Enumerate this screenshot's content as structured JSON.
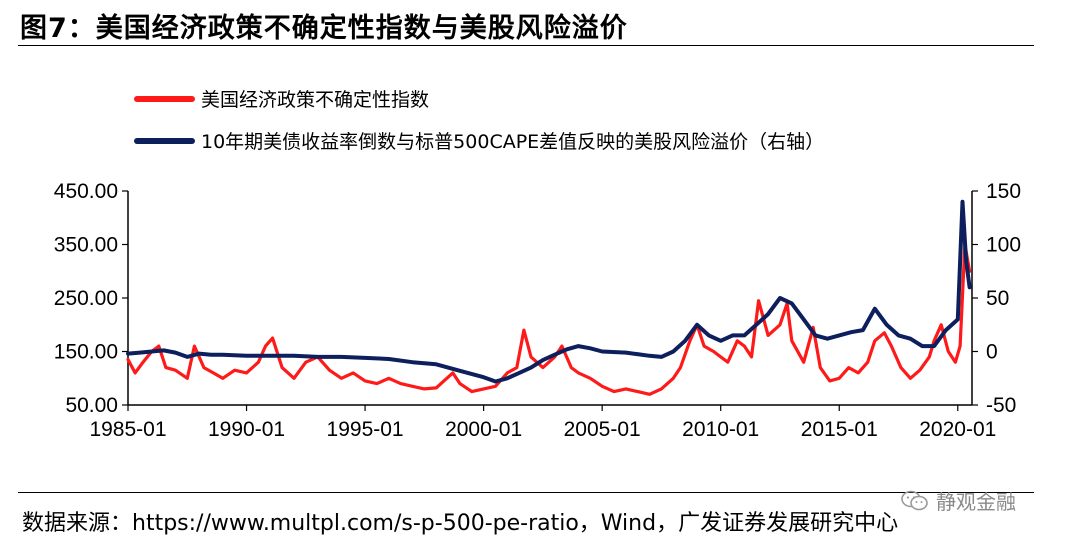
{
  "figure": {
    "title": "图7：美国经济政策不确定性指数与美股风险溢价",
    "source": "数据来源：https://www.multpl.com/s-p-500-pe-ratio，Wind，广发证券发展研究中心",
    "watermark": "静观金融"
  },
  "chart_data": {
    "type": "line",
    "x_range": [
      "1985-01",
      "2020-06"
    ],
    "x_ticks": [
      "1985-01",
      "1990-01",
      "1995-01",
      "2000-01",
      "2005-01",
      "2010-01",
      "2015-01",
      "2020-01"
    ],
    "y_left": {
      "ticks": [
        "450.00",
        "350.00",
        "250.00",
        "150.00",
        "50.00"
      ],
      "range": [
        50,
        450
      ]
    },
    "y_right": {
      "ticks": [
        "150",
        "100",
        "50",
        "0",
        "-50"
      ],
      "range": [
        -50,
        150
      ]
    },
    "legend_position": "top-left",
    "grid": false,
    "colors": {
      "uncertainty": "#ff1a1a",
      "premium": "#0d1f5c"
    },
    "series": [
      {
        "name": "美国经济政策不确定性指数",
        "axis": "left",
        "points": [
          [
            1985.0,
            135
          ],
          [
            1985.3,
            110
          ],
          [
            1985.6,
            128
          ],
          [
            1986.0,
            150
          ],
          [
            1986.3,
            160
          ],
          [
            1986.6,
            120
          ],
          [
            1987.0,
            115
          ],
          [
            1987.5,
            100
          ],
          [
            1987.8,
            160
          ],
          [
            1988.2,
            120
          ],
          [
            1988.6,
            110
          ],
          [
            1989.0,
            100
          ],
          [
            1989.5,
            115
          ],
          [
            1990.0,
            110
          ],
          [
            1990.5,
            130
          ],
          [
            1990.8,
            160
          ],
          [
            1991.1,
            175
          ],
          [
            1991.5,
            120
          ],
          [
            1992.0,
            100
          ],
          [
            1992.5,
            130
          ],
          [
            1993.0,
            140
          ],
          [
            1993.5,
            115
          ],
          [
            1994.0,
            100
          ],
          [
            1994.5,
            110
          ],
          [
            1995.0,
            95
          ],
          [
            1995.5,
            90
          ],
          [
            1996.0,
            100
          ],
          [
            1996.5,
            90
          ],
          [
            1997.0,
            85
          ],
          [
            1997.5,
            80
          ],
          [
            1998.0,
            82
          ],
          [
            1998.7,
            110
          ],
          [
            1999.0,
            90
          ],
          [
            1999.5,
            75
          ],
          [
            2000.0,
            80
          ],
          [
            2000.5,
            85
          ],
          [
            2001.0,
            110
          ],
          [
            2001.4,
            120
          ],
          [
            2001.7,
            190
          ],
          [
            2002.0,
            140
          ],
          [
            2002.5,
            120
          ],
          [
            2003.0,
            140
          ],
          [
            2003.3,
            160
          ],
          [
            2003.7,
            120
          ],
          [
            2004.0,
            110
          ],
          [
            2004.5,
            100
          ],
          [
            2005.0,
            85
          ],
          [
            2005.5,
            75
          ],
          [
            2006.0,
            80
          ],
          [
            2006.5,
            75
          ],
          [
            2007.0,
            70
          ],
          [
            2007.5,
            80
          ],
          [
            2008.0,
            100
          ],
          [
            2008.3,
            120
          ],
          [
            2008.7,
            170
          ],
          [
            2009.0,
            200
          ],
          [
            2009.3,
            160
          ],
          [
            2009.7,
            150
          ],
          [
            2010.0,
            140
          ],
          [
            2010.3,
            130
          ],
          [
            2010.7,
            170
          ],
          [
            2011.0,
            160
          ],
          [
            2011.3,
            140
          ],
          [
            2011.6,
            245
          ],
          [
            2012.0,
            180
          ],
          [
            2012.5,
            200
          ],
          [
            2012.8,
            240
          ],
          [
            2013.0,
            170
          ],
          [
            2013.5,
            130
          ],
          [
            2013.9,
            195
          ],
          [
            2014.2,
            120
          ],
          [
            2014.6,
            95
          ],
          [
            2015.0,
            100
          ],
          [
            2015.4,
            120
          ],
          [
            2015.8,
            110
          ],
          [
            2016.2,
            130
          ],
          [
            2016.5,
            170
          ],
          [
            2016.9,
            185
          ],
          [
            2017.2,
            160
          ],
          [
            2017.6,
            120
          ],
          [
            2018.0,
            100
          ],
          [
            2018.4,
            115
          ],
          [
            2018.8,
            140
          ],
          [
            2019.0,
            170
          ],
          [
            2019.3,
            200
          ],
          [
            2019.6,
            150
          ],
          [
            2019.9,
            130
          ],
          [
            2020.1,
            160
          ],
          [
            2020.3,
            350
          ],
          [
            2020.5,
            300
          ]
        ]
      },
      {
        "name": "10年期美债收益率倒数与标普500CAPE差值反映的美股风险溢价（右轴）",
        "axis": "right",
        "points": [
          [
            1985.0,
            -2
          ],
          [
            1985.5,
            -1
          ],
          [
            1986.0,
            0
          ],
          [
            1986.5,
            1
          ],
          [
            1987.0,
            -1
          ],
          [
            1987.5,
            -5
          ],
          [
            1988.0,
            -2
          ],
          [
            1988.5,
            -3
          ],
          [
            1989.0,
            -3
          ],
          [
            1990.0,
            -4
          ],
          [
            1991.0,
            -4
          ],
          [
            1992.0,
            -4
          ],
          [
            1993.0,
            -5
          ],
          [
            1994.0,
            -5
          ],
          [
            1995.0,
            -6
          ],
          [
            1996.0,
            -7
          ],
          [
            1997.0,
            -10
          ],
          [
            1998.0,
            -12
          ],
          [
            1999.0,
            -18
          ],
          [
            2000.0,
            -24
          ],
          [
            2000.5,
            -28
          ],
          [
            2001.0,
            -25
          ],
          [
            2001.5,
            -20
          ],
          [
            2002.0,
            -15
          ],
          [
            2002.5,
            -8
          ],
          [
            2003.0,
            -3
          ],
          [
            2003.5,
            2
          ],
          [
            2004.0,
            5
          ],
          [
            2004.5,
            3
          ],
          [
            2005.0,
            0
          ],
          [
            2006.0,
            -1
          ],
          [
            2007.0,
            -4
          ],
          [
            2007.5,
            -5
          ],
          [
            2008.0,
            0
          ],
          [
            2008.5,
            10
          ],
          [
            2009.0,
            25
          ],
          [
            2009.5,
            15
          ],
          [
            2010.0,
            10
          ],
          [
            2010.5,
            15
          ],
          [
            2011.0,
            15
          ],
          [
            2011.5,
            25
          ],
          [
            2012.0,
            35
          ],
          [
            2012.5,
            50
          ],
          [
            2013.0,
            45
          ],
          [
            2013.5,
            30
          ],
          [
            2014.0,
            15
          ],
          [
            2014.5,
            12
          ],
          [
            2015.0,
            15
          ],
          [
            2015.5,
            18
          ],
          [
            2016.0,
            20
          ],
          [
            2016.5,
            40
          ],
          [
            2017.0,
            25
          ],
          [
            2017.5,
            15
          ],
          [
            2018.0,
            12
          ],
          [
            2018.5,
            5
          ],
          [
            2019.0,
            5
          ],
          [
            2019.5,
            20
          ],
          [
            2020.0,
            30
          ],
          [
            2020.2,
            140
          ],
          [
            2020.35,
            85
          ],
          [
            2020.5,
            60
          ]
        ]
      }
    ]
  }
}
